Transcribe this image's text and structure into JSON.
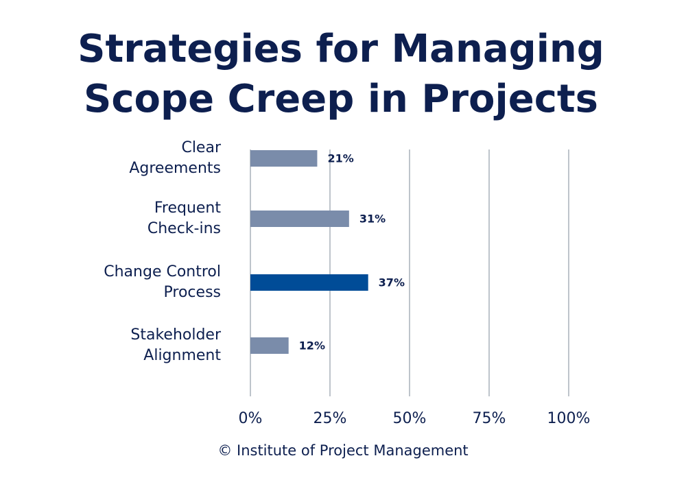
{
  "chart_data": {
    "type": "hbar",
    "title": "Strategies for Managing\nScope Creep in Projects",
    "categories": [
      "Clear\nAgreements",
      "Frequent\nCheck-ins",
      "Change Control\nProcess",
      "Stakeholder\nAlignment"
    ],
    "values": [
      21,
      31,
      37,
      12
    ],
    "value_labels": [
      "21%",
      "31%",
      "37%",
      "12%"
    ],
    "colors": [
      "#7a8caa",
      "#7a8caa",
      "#004c97",
      "#7a8caa"
    ],
    "xlim": [
      0,
      100
    ],
    "xticks": [
      {
        "value": 0,
        "label": "0%"
      },
      {
        "value": 25,
        "label": "25%"
      },
      {
        "value": 50,
        "label": "50%"
      },
      {
        "value": 75,
        "label": "75%"
      },
      {
        "value": 100,
        "label": "100%"
      }
    ],
    "grid": true,
    "source": "© Institute of Project Management"
  }
}
